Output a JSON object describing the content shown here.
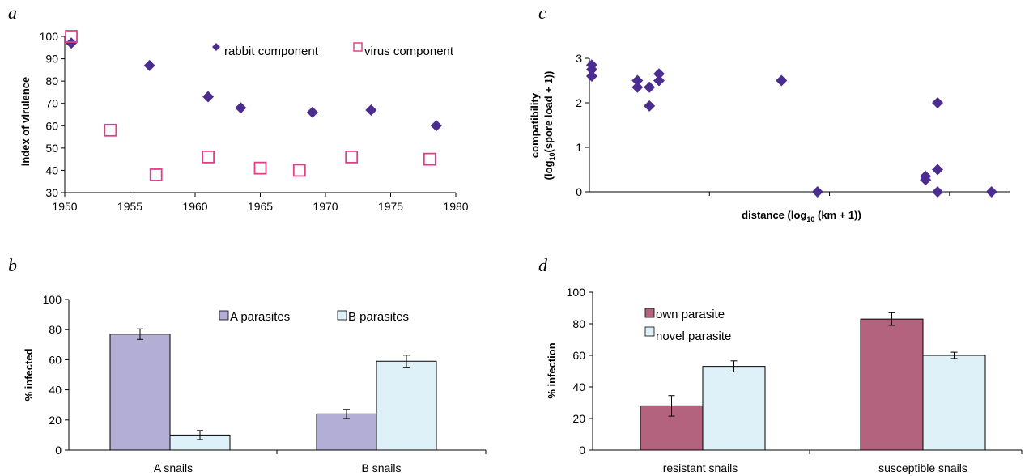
{
  "colors": {
    "rabbit": "#4b2d8f",
    "virus": "#e0408a",
    "a_parasites": "#b3aed6",
    "b_parasites": "#dff1f8",
    "own_parasite": "#b3637e",
    "novel_parasite": "#dff1f8"
  },
  "chart_data": [
    {
      "panel": "a",
      "type": "scatter",
      "ylabel": "index of virulence",
      "xlabel": "",
      "xlim": [
        1950,
        1980
      ],
      "ylim": [
        30,
        100
      ],
      "xticks": [
        "1950",
        "1955",
        "1960",
        "1965",
        "1970",
        "1975",
        "1980"
      ],
      "yticks": [
        "30",
        "40",
        "50",
        "60",
        "70",
        "80",
        "90",
        "100"
      ],
      "legend_position": "top-right",
      "series": [
        {
          "name": "rabbit component",
          "marker": "diamond",
          "points": [
            [
              1950.5,
              97
            ],
            [
              1956.5,
              87
            ],
            [
              1961,
              73
            ],
            [
              1963.5,
              68
            ],
            [
              1969,
              66
            ],
            [
              1973.5,
              67
            ],
            [
              1978.5,
              60
            ]
          ]
        },
        {
          "name": "virus component",
          "marker": "square-open",
          "points": [
            [
              1950.5,
              100
            ],
            [
              1953.5,
              58
            ],
            [
              1957,
              38
            ],
            [
              1961,
              46
            ],
            [
              1965,
              41
            ],
            [
              1968,
              40
            ],
            [
              1972,
              46
            ],
            [
              1978,
              45
            ]
          ]
        }
      ]
    },
    {
      "panel": "b",
      "type": "bar",
      "ylabel": "% infected",
      "xlabel": "",
      "ylim": [
        0,
        100
      ],
      "yticks": [
        "0",
        "20",
        "40",
        "60",
        "80",
        "100"
      ],
      "categories": [
        "A snails",
        "B snails"
      ],
      "legend_position": "top-center",
      "series": [
        {
          "name": "A parasites",
          "values": [
            77,
            24
          ],
          "errors": [
            3.5,
            3
          ]
        },
        {
          "name": "B parasites",
          "values": [
            10,
            59
          ],
          "errors": [
            3,
            4
          ]
        }
      ]
    },
    {
      "panel": "c",
      "type": "scatter",
      "ylabel": "compatibility",
      "ylabel_line2": "(log",
      "ylabel_sub": "10",
      "ylabel_line2_rest": "(spore load + 1))",
      "xlabel": "distance (log",
      "xlabel_sub": "10",
      "xlabel_rest": " (km + 1))",
      "ylim": [
        0,
        3
      ],
      "yticks": [
        "0",
        "1",
        "2",
        "3"
      ],
      "xlim": [
        0,
        3.5
      ],
      "series": [
        {
          "name": "",
          "marker": "diamond",
          "points": [
            [
              0.02,
              2.75
            ],
            [
              0.02,
              2.85
            ],
            [
              0.02,
              2.6
            ],
            [
              0.4,
              2.5
            ],
            [
              0.4,
              2.35
            ],
            [
              0.5,
              2.35
            ],
            [
              0.5,
              1.93
            ],
            [
              0.58,
              2.65
            ],
            [
              0.58,
              2.5
            ],
            [
              1.6,
              2.5
            ],
            [
              1.9,
              0
            ],
            [
              2.8,
              0.35
            ],
            [
              2.8,
              0.27
            ],
            [
              2.9,
              2.0
            ],
            [
              2.9,
              0.5
            ],
            [
              2.9,
              0
            ],
            [
              3.35,
              0
            ]
          ]
        }
      ]
    },
    {
      "panel": "d",
      "type": "bar",
      "ylabel": "% infection",
      "xlabel": "",
      "ylim": [
        0,
        100
      ],
      "yticks": [
        "0",
        "20",
        "40",
        "60",
        "80",
        "100"
      ],
      "categories": [
        "resistant snails",
        "susceptible snails"
      ],
      "legend_position": "top-left",
      "series": [
        {
          "name": "own parasite",
          "values": [
            28,
            83
          ],
          "errors": [
            6.5,
            4
          ]
        },
        {
          "name": "novel parasite",
          "values": [
            53,
            60
          ],
          "errors": [
            3.5,
            2
          ]
        }
      ]
    }
  ]
}
